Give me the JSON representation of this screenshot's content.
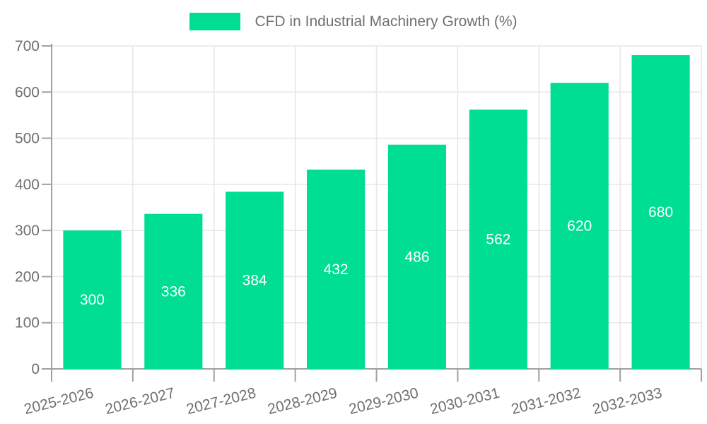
{
  "legend": {
    "label": "CFD in Industrial Machinery Growth (%)"
  },
  "colors": {
    "bar": "#00DE93",
    "grid": "#e6e6e6",
    "axis": "#a0a0a0",
    "tick": "#a0a0a0",
    "text": "#707070",
    "value_label": "#ffffff",
    "background": "#ffffff"
  },
  "chart_data": {
    "type": "bar",
    "title": "CFD in Industrial Machinery Growth (%)",
    "categories": [
      "2025-2026",
      "2026-2027",
      "2027-2028",
      "2028-2029",
      "2029-2030",
      "2030-2031",
      "2031-2032",
      "2032-2033"
    ],
    "values": [
      300,
      336,
      384,
      432,
      486,
      562,
      620,
      680
    ],
    "xlabel": "",
    "ylabel": "",
    "ylim": [
      0,
      700
    ],
    "yticks": [
      0,
      100,
      200,
      300,
      400,
      500,
      600,
      700
    ],
    "grid": true,
    "legend_position": "top-center",
    "value_label_position": "inside-middle",
    "x_label_rotation_deg": -14
  }
}
